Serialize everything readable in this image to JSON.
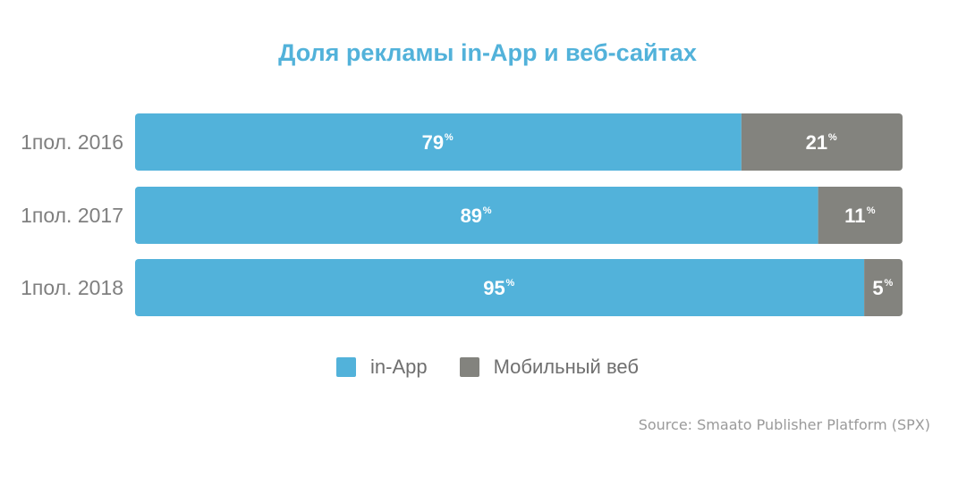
{
  "chart_data": {
    "type": "bar",
    "orientation": "horizontal",
    "stacked": true,
    "title": "Доля рекламы in-App и веб-сайтах",
    "categories": [
      "1пол. 2016",
      "1пол. 2017",
      "1пол. 2018"
    ],
    "series": [
      {
        "name": "in-App",
        "values": [
          79,
          89,
          95
        ],
        "color": "#52b2da"
      },
      {
        "name": "Мобильный веб",
        "values": [
          21,
          11,
          5
        ],
        "color": "#83837e"
      }
    ],
    "value_suffix": "%",
    "xlim": [
      0,
      100
    ],
    "legend_position": "bottom",
    "grid": false,
    "source": "Source: Smaato Publisher Platform (SPX)"
  }
}
